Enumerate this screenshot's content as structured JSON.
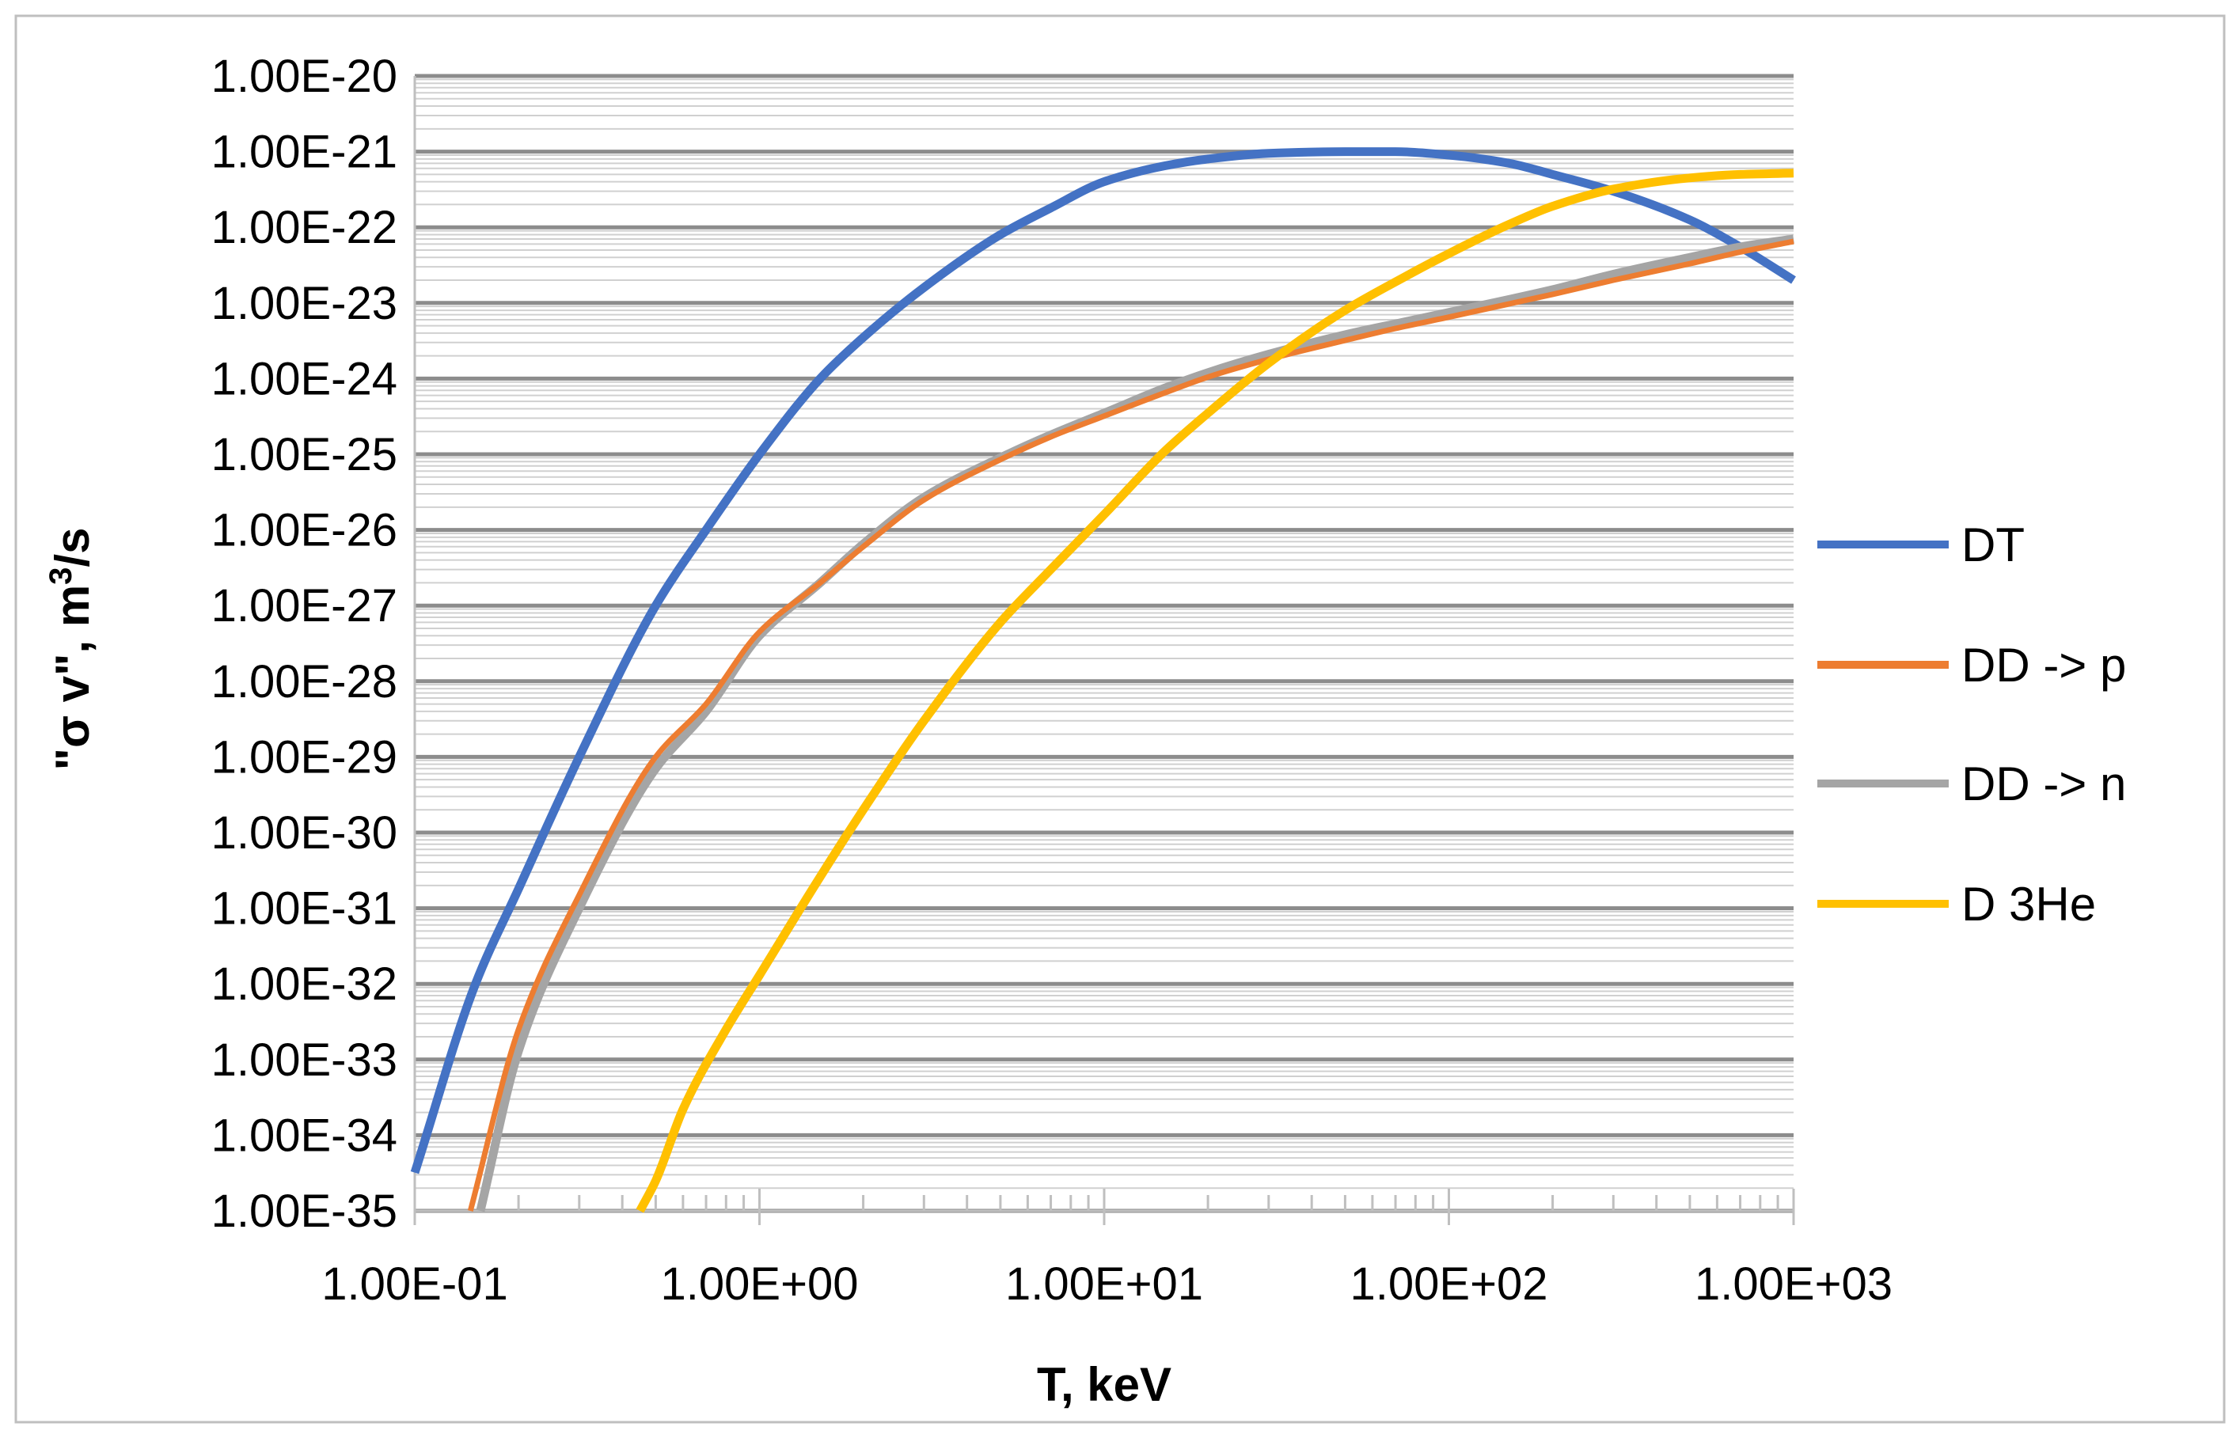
{
  "chart_data": {
    "type": "line",
    "title": "",
    "xlabel": "T, keV",
    "ylabel_parts": {
      "main": "\"σ v\", m",
      "sup": "3",
      "tail": "/s"
    },
    "x_scale": "log",
    "y_scale": "log",
    "xlim": [
      0.1,
      1000
    ],
    "ylim": [
      1e-35,
      1e-20
    ],
    "x_ticks": [
      {
        "value": 0.1,
        "label": "1.00E-01"
      },
      {
        "value": 1,
        "label": "1.00E+00"
      },
      {
        "value": 10,
        "label": "1.00E+01"
      },
      {
        "value": 100,
        "label": "1.00E+02"
      },
      {
        "value": 1000,
        "label": "1.00E+03"
      }
    ],
    "y_ticks": [
      {
        "value": 1e-20,
        "label": "1.00E-20"
      },
      {
        "value": 1e-21,
        "label": "1.00E-21"
      },
      {
        "value": 1e-22,
        "label": "1.00E-22"
      },
      {
        "value": 1e-23,
        "label": "1.00E-23"
      },
      {
        "value": 1e-24,
        "label": "1.00E-24"
      },
      {
        "value": 1e-25,
        "label": "1.00E-25"
      },
      {
        "value": 1e-26,
        "label": "1.00E-26"
      },
      {
        "value": 1e-27,
        "label": "1.00E-27"
      },
      {
        "value": 1e-28,
        "label": "1.00E-28"
      },
      {
        "value": 1e-29,
        "label": "1.00E-29"
      },
      {
        "value": 1e-30,
        "label": "1.00E-30"
      },
      {
        "value": 1e-31,
        "label": "1.00E-31"
      },
      {
        "value": 1e-32,
        "label": "1.00E-32"
      },
      {
        "value": 1e-33,
        "label": "1.00E-33"
      },
      {
        "value": 1e-34,
        "label": "1.00E-34"
      },
      {
        "value": 1e-35,
        "label": "1.00E-35"
      }
    ],
    "grid": {
      "major": true,
      "minor": true
    },
    "legend_position": "right",
    "series": [
      {
        "name": "DT",
        "color": "#4472C4",
        "x": [
          0.1,
          0.15,
          0.2,
          0.3,
          0.5,
          0.7,
          1,
          1.5,
          2,
          3,
          5,
          7,
          10,
          15,
          20,
          30,
          50,
          70,
          100,
          150,
          200,
          300,
          500,
          700,
          1000
        ],
        "y": [
          3.2e-35,
          1e-32,
          1.8e-31,
          1e-29,
          1e-27,
          1e-26,
          1e-25,
          1e-24,
          3.5e-24,
          1.6e-23,
          8e-23,
          1.8e-22,
          4e-22,
          6.5e-22,
          8e-22,
          9.5e-22,
          1e-21,
          1e-21,
          9e-22,
          7e-22,
          5e-22,
          3e-22,
          1.25e-22,
          5.5e-23,
          2e-23
        ]
      },
      {
        "name": "DD -> p",
        "color": "#ED7D31",
        "x": [
          0.145,
          0.2,
          0.3,
          0.5,
          0.7,
          1,
          1.5,
          2,
          3,
          5,
          7,
          10,
          15,
          20,
          30,
          50,
          70,
          100,
          200,
          300,
          500,
          700,
          1000
        ],
        "y": [
          1e-35,
          2.5e-33,
          1.5e-31,
          1e-29,
          5e-29,
          4.5e-28,
          2e-27,
          6e-27,
          2.5e-26,
          8.5e-26,
          1.7e-25,
          3.2e-25,
          6.5e-25,
          1.05e-24,
          1.8e-24,
          3.2e-24,
          4.6e-24,
          6.5e-24,
          1.3e-23,
          2e-23,
          3.3e-23,
          4.7e-23,
          6.5e-23
        ]
      },
      {
        "name": "DD -> n",
        "color": "#A5A5A5",
        "x": [
          0.155,
          0.2,
          0.3,
          0.5,
          0.7,
          1,
          1.5,
          2,
          3,
          5,
          7,
          10,
          15,
          20,
          30,
          50,
          70,
          100,
          200,
          300,
          500,
          700,
          1000
        ],
        "y": [
          1e-35,
          1.3e-33,
          1e-31,
          7e-30,
          4e-29,
          4e-28,
          2e-27,
          6.5e-27,
          2.7e-26,
          9e-26,
          1.8e-25,
          3.5e-25,
          7.5e-25,
          1.2e-24,
          2.1e-24,
          3.8e-24,
          5.3e-24,
          7.5e-24,
          1.5e-23,
          2.4e-23,
          4e-23,
          5.5e-23,
          7e-23
        ]
      },
      {
        "name": "D 3He",
        "color": "#FFC000",
        "x": [
          0.45,
          0.5,
          0.6,
          0.8,
          1,
          1.5,
          2,
          3,
          5,
          7,
          10,
          15,
          20,
          30,
          50,
          70,
          100,
          150,
          200,
          300,
          500,
          700,
          1000
        ],
        "y": [
          1e-35,
          2.5e-35,
          2.2e-34,
          2.5e-33,
          1.3e-32,
          2.6e-31,
          2e-30,
          3e-29,
          6e-28,
          3e-27,
          1.6e-26,
          1.1e-25,
          3.5e-25,
          1.6e-24,
          8e-24,
          1.9e-23,
          4.5e-23,
          1.1e-22,
          1.9e-22,
          3.2e-22,
          4.5e-22,
          5e-22,
          5.2e-22
        ]
      }
    ]
  }
}
